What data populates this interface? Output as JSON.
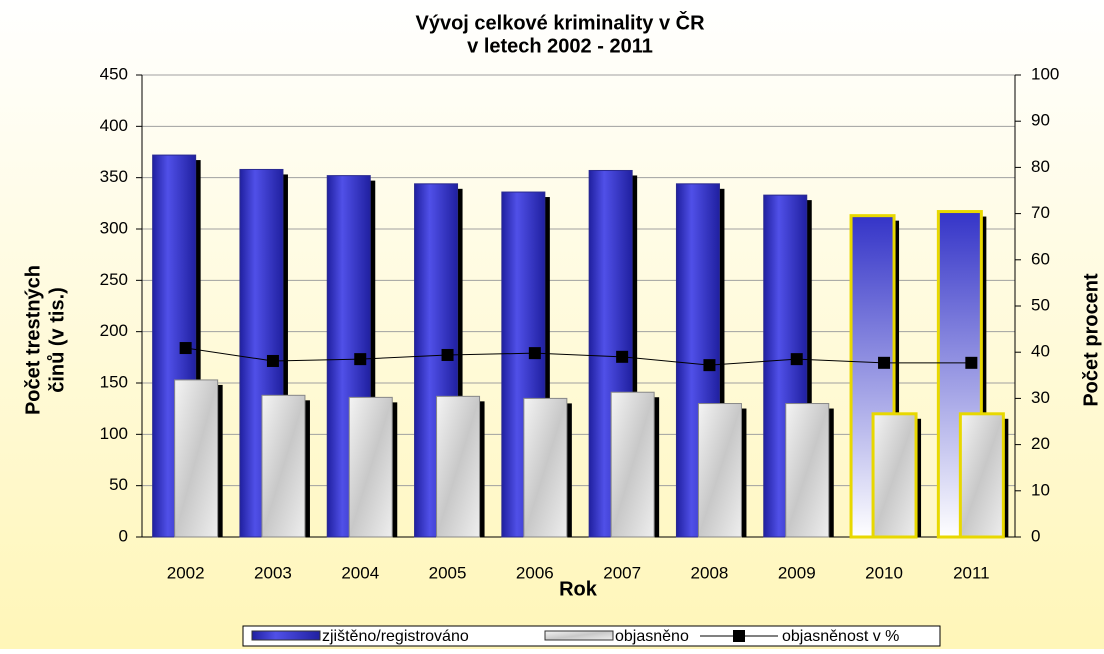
{
  "chart_data": {
    "type": "bar-line",
    "title": [
      "Vývoj celkové kriminality v ČR",
      "v letech 2002 - 2011"
    ],
    "x_label": "Rok",
    "y_label": [
      "Počet trestných",
      "činů (v tis.)"
    ],
    "y2_label": "Počet procent",
    "categories": [
      "2002",
      "2003",
      "2004",
      "2005",
      "2006",
      "2007",
      "2008",
      "2009",
      "2010",
      "2011"
    ],
    "series": [
      {
        "name": "zjištěno/registrováno",
        "type": "bar",
        "color": "#3434c8",
        "values": [
          372,
          358,
          352,
          344,
          336,
          357,
          344,
          333,
          313,
          317
        ]
      },
      {
        "name": "objasněno",
        "type": "bar",
        "color": "#dcdcdc",
        "values": [
          153,
          138,
          136,
          137,
          135,
          141,
          130,
          130,
          120,
          120
        ]
      },
      {
        "name": "objasněnost v %",
        "type": "line",
        "axis": "y2",
        "color": "#000000",
        "values": [
          40.9,
          38.1,
          38.5,
          39.4,
          39.8,
          39.0,
          37.2,
          38.5,
          37.7,
          37.7
        ]
      }
    ],
    "highlight": [
      8,
      9
    ],
    "ylim": [
      0,
      450
    ],
    "yticks": [
      0,
      50,
      100,
      150,
      200,
      250,
      300,
      350,
      400,
      450
    ],
    "y2lim": [
      0,
      100
    ],
    "y2ticks": [
      0,
      10,
      20,
      30,
      40,
      50,
      60,
      70,
      80,
      90,
      100
    ],
    "grid": true,
    "legend": "bottom"
  }
}
